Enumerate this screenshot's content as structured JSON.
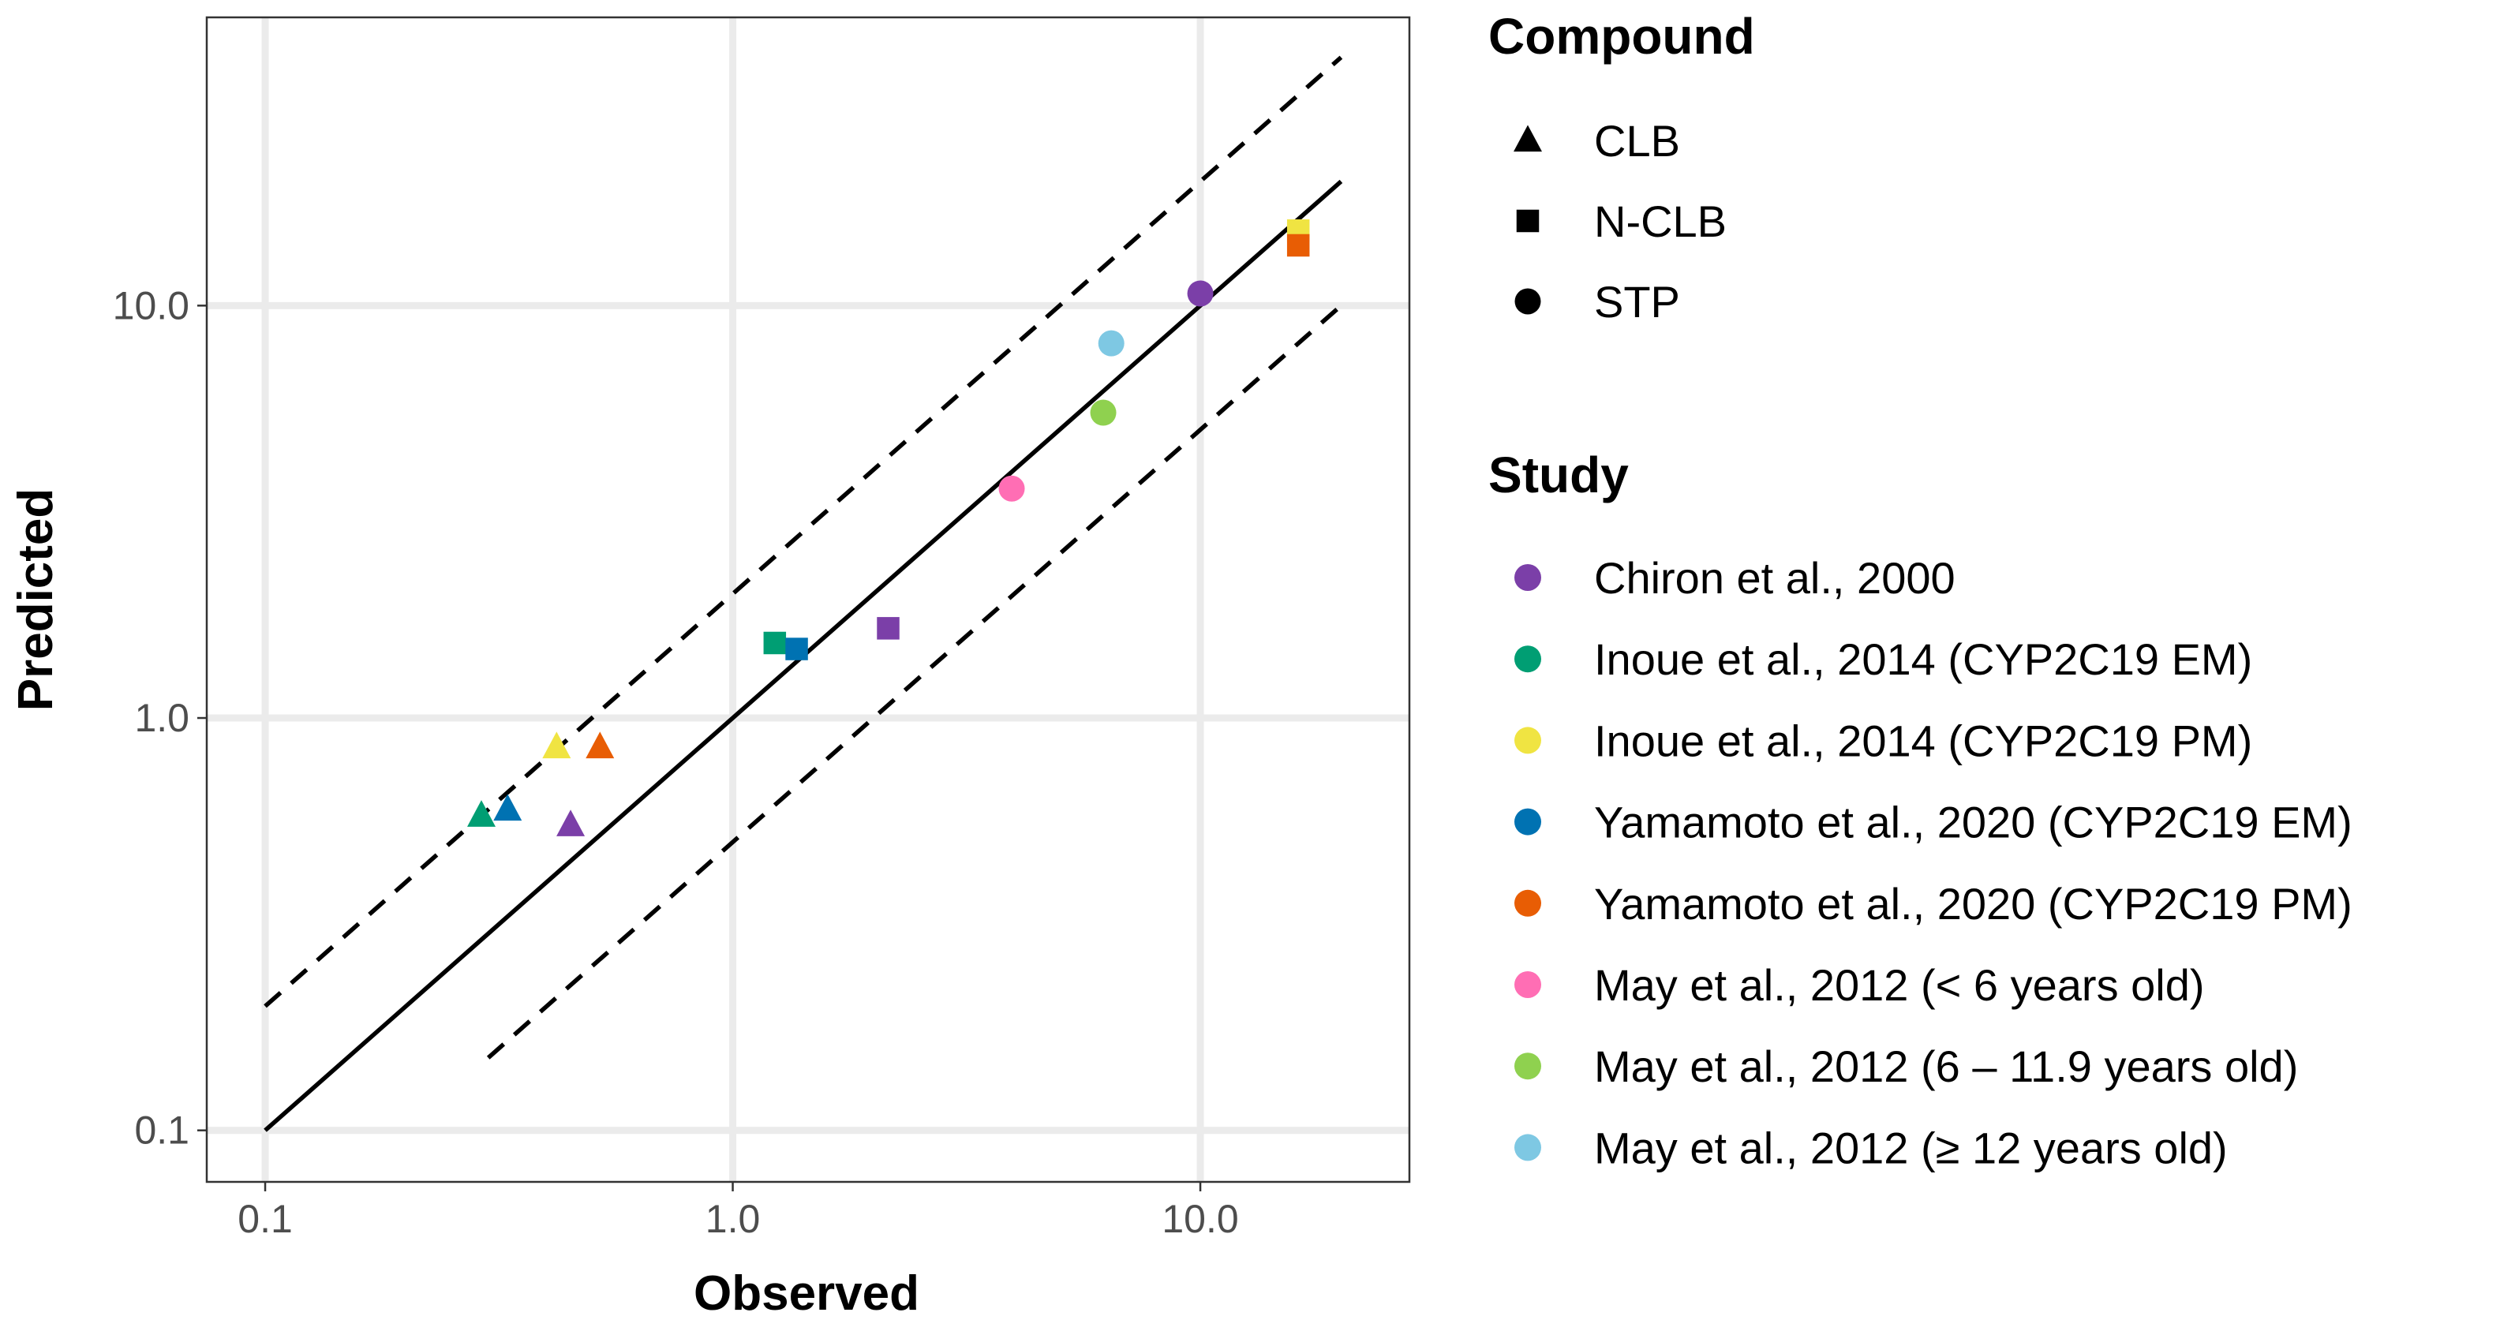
{
  "chart_data": {
    "type": "scatter",
    "title": "",
    "xlabel": "Observed",
    "ylabel": "Predicted",
    "x_scale": "log10",
    "y_scale": "log10",
    "xlim": [
      0.075,
      28
    ],
    "ylim": [
      0.075,
      50
    ],
    "x_ticks": [
      0.1,
      1.0,
      10.0
    ],
    "x_tick_labels": [
      "0.1",
      "1.0",
      "10.0"
    ],
    "y_ticks": [
      0.1,
      1.0,
      10.0
    ],
    "y_tick_labels": [
      "0.1",
      "1.0",
      "10.0"
    ],
    "grid": true,
    "reference_lines": [
      {
        "name": "identity",
        "style": "solid",
        "x": [
          0.1,
          20
        ],
        "y": [
          0.1,
          20
        ]
      },
      {
        "name": "upper-2-fold",
        "style": "dashed",
        "x": [
          0.1,
          20
        ],
        "y": [
          0.2,
          40
        ]
      },
      {
        "name": "lower-2-fold",
        "style": "dashed",
        "x": [
          0.3,
          20
        ],
        "y": [
          0.15,
          10
        ]
      }
    ],
    "shape_legend": {
      "title": "Compound",
      "items": [
        {
          "label": "CLB",
          "shape": "triangle"
        },
        {
          "label": "N-CLB",
          "shape": "square"
        },
        {
          "label": "STP",
          "shape": "circle"
        }
      ]
    },
    "color_legend": {
      "title": "Study",
      "items": [
        {
          "label": "Chiron et al., 2000",
          "color": "#7B3FA8"
        },
        {
          "label": "Inoue et al., 2014 (CYP2C19 EM)",
          "color": "#009E73"
        },
        {
          "label": "Inoue et al., 2014 (CYP2C19 PM)",
          "color": "#F0E442"
        },
        {
          "label": "Yamamoto et al., 2020 (CYP2C19 EM)",
          "color": "#0072B2"
        },
        {
          "label": "Yamamoto et al., 2020 (CYP2C19 PM)",
          "color": "#E85D04"
        },
        {
          "label": "May et al., 2012 (< 6 years old)",
          "color": "#FF6EB4"
        },
        {
          "label": "May et al., 2012 (6 – 11.9 years old)",
          "color": "#8FD14F"
        },
        {
          "label": "May et al., 2012 (≥ 12 years old)",
          "color": "#7EC8E3"
        }
      ]
    },
    "points": [
      {
        "study": "Inoue et al., 2014 (CYP2C19 EM)",
        "compound": "CLB",
        "observed": 0.29,
        "predicted": 0.58
      },
      {
        "study": "Yamamoto et al., 2020 (CYP2C19 EM)",
        "compound": "CLB",
        "observed": 0.33,
        "predicted": 0.6
      },
      {
        "study": "Inoue et al., 2014 (CYP2C19 PM)",
        "compound": "CLB",
        "observed": 0.42,
        "predicted": 0.85
      },
      {
        "study": "Chiron et al., 2000",
        "compound": "CLB",
        "observed": 0.45,
        "predicted": 0.55
      },
      {
        "study": "Yamamoto et al., 2020 (CYP2C19 PM)",
        "compound": "CLB",
        "observed": 0.52,
        "predicted": 0.85
      },
      {
        "study": "Inoue et al., 2014 (CYP2C19 EM)",
        "compound": "N-CLB",
        "observed": 1.23,
        "predicted": 1.52
      },
      {
        "study": "Yamamoto et al., 2020 (CYP2C19 EM)",
        "compound": "N-CLB",
        "observed": 1.37,
        "predicted": 1.47
      },
      {
        "study": "Chiron et al., 2000",
        "compound": "N-CLB",
        "observed": 2.15,
        "predicted": 1.65
      },
      {
        "study": "May et al., 2012 (< 6 years old)",
        "compound": "STP",
        "observed": 3.95,
        "predicted": 3.6
      },
      {
        "study": "May et al., 2012 (6 – 11.9 years old)",
        "compound": "STP",
        "observed": 6.2,
        "predicted": 5.5
      },
      {
        "study": "May et al., 2012 (≥ 12 years old)",
        "compound": "STP",
        "observed": 6.45,
        "predicted": 8.1
      },
      {
        "study": "Chiron et al., 2000",
        "compound": "STP",
        "observed": 10.0,
        "predicted": 10.7
      },
      {
        "study": "Inoue et al., 2014 (CYP2C19 PM)",
        "compound": "N-CLB",
        "observed": 16.2,
        "predicted": 15.2
      },
      {
        "study": "Yamamoto et al., 2020 (CYP2C19 PM)",
        "compound": "N-CLB",
        "observed": 16.2,
        "predicted": 14.0
      }
    ]
  }
}
